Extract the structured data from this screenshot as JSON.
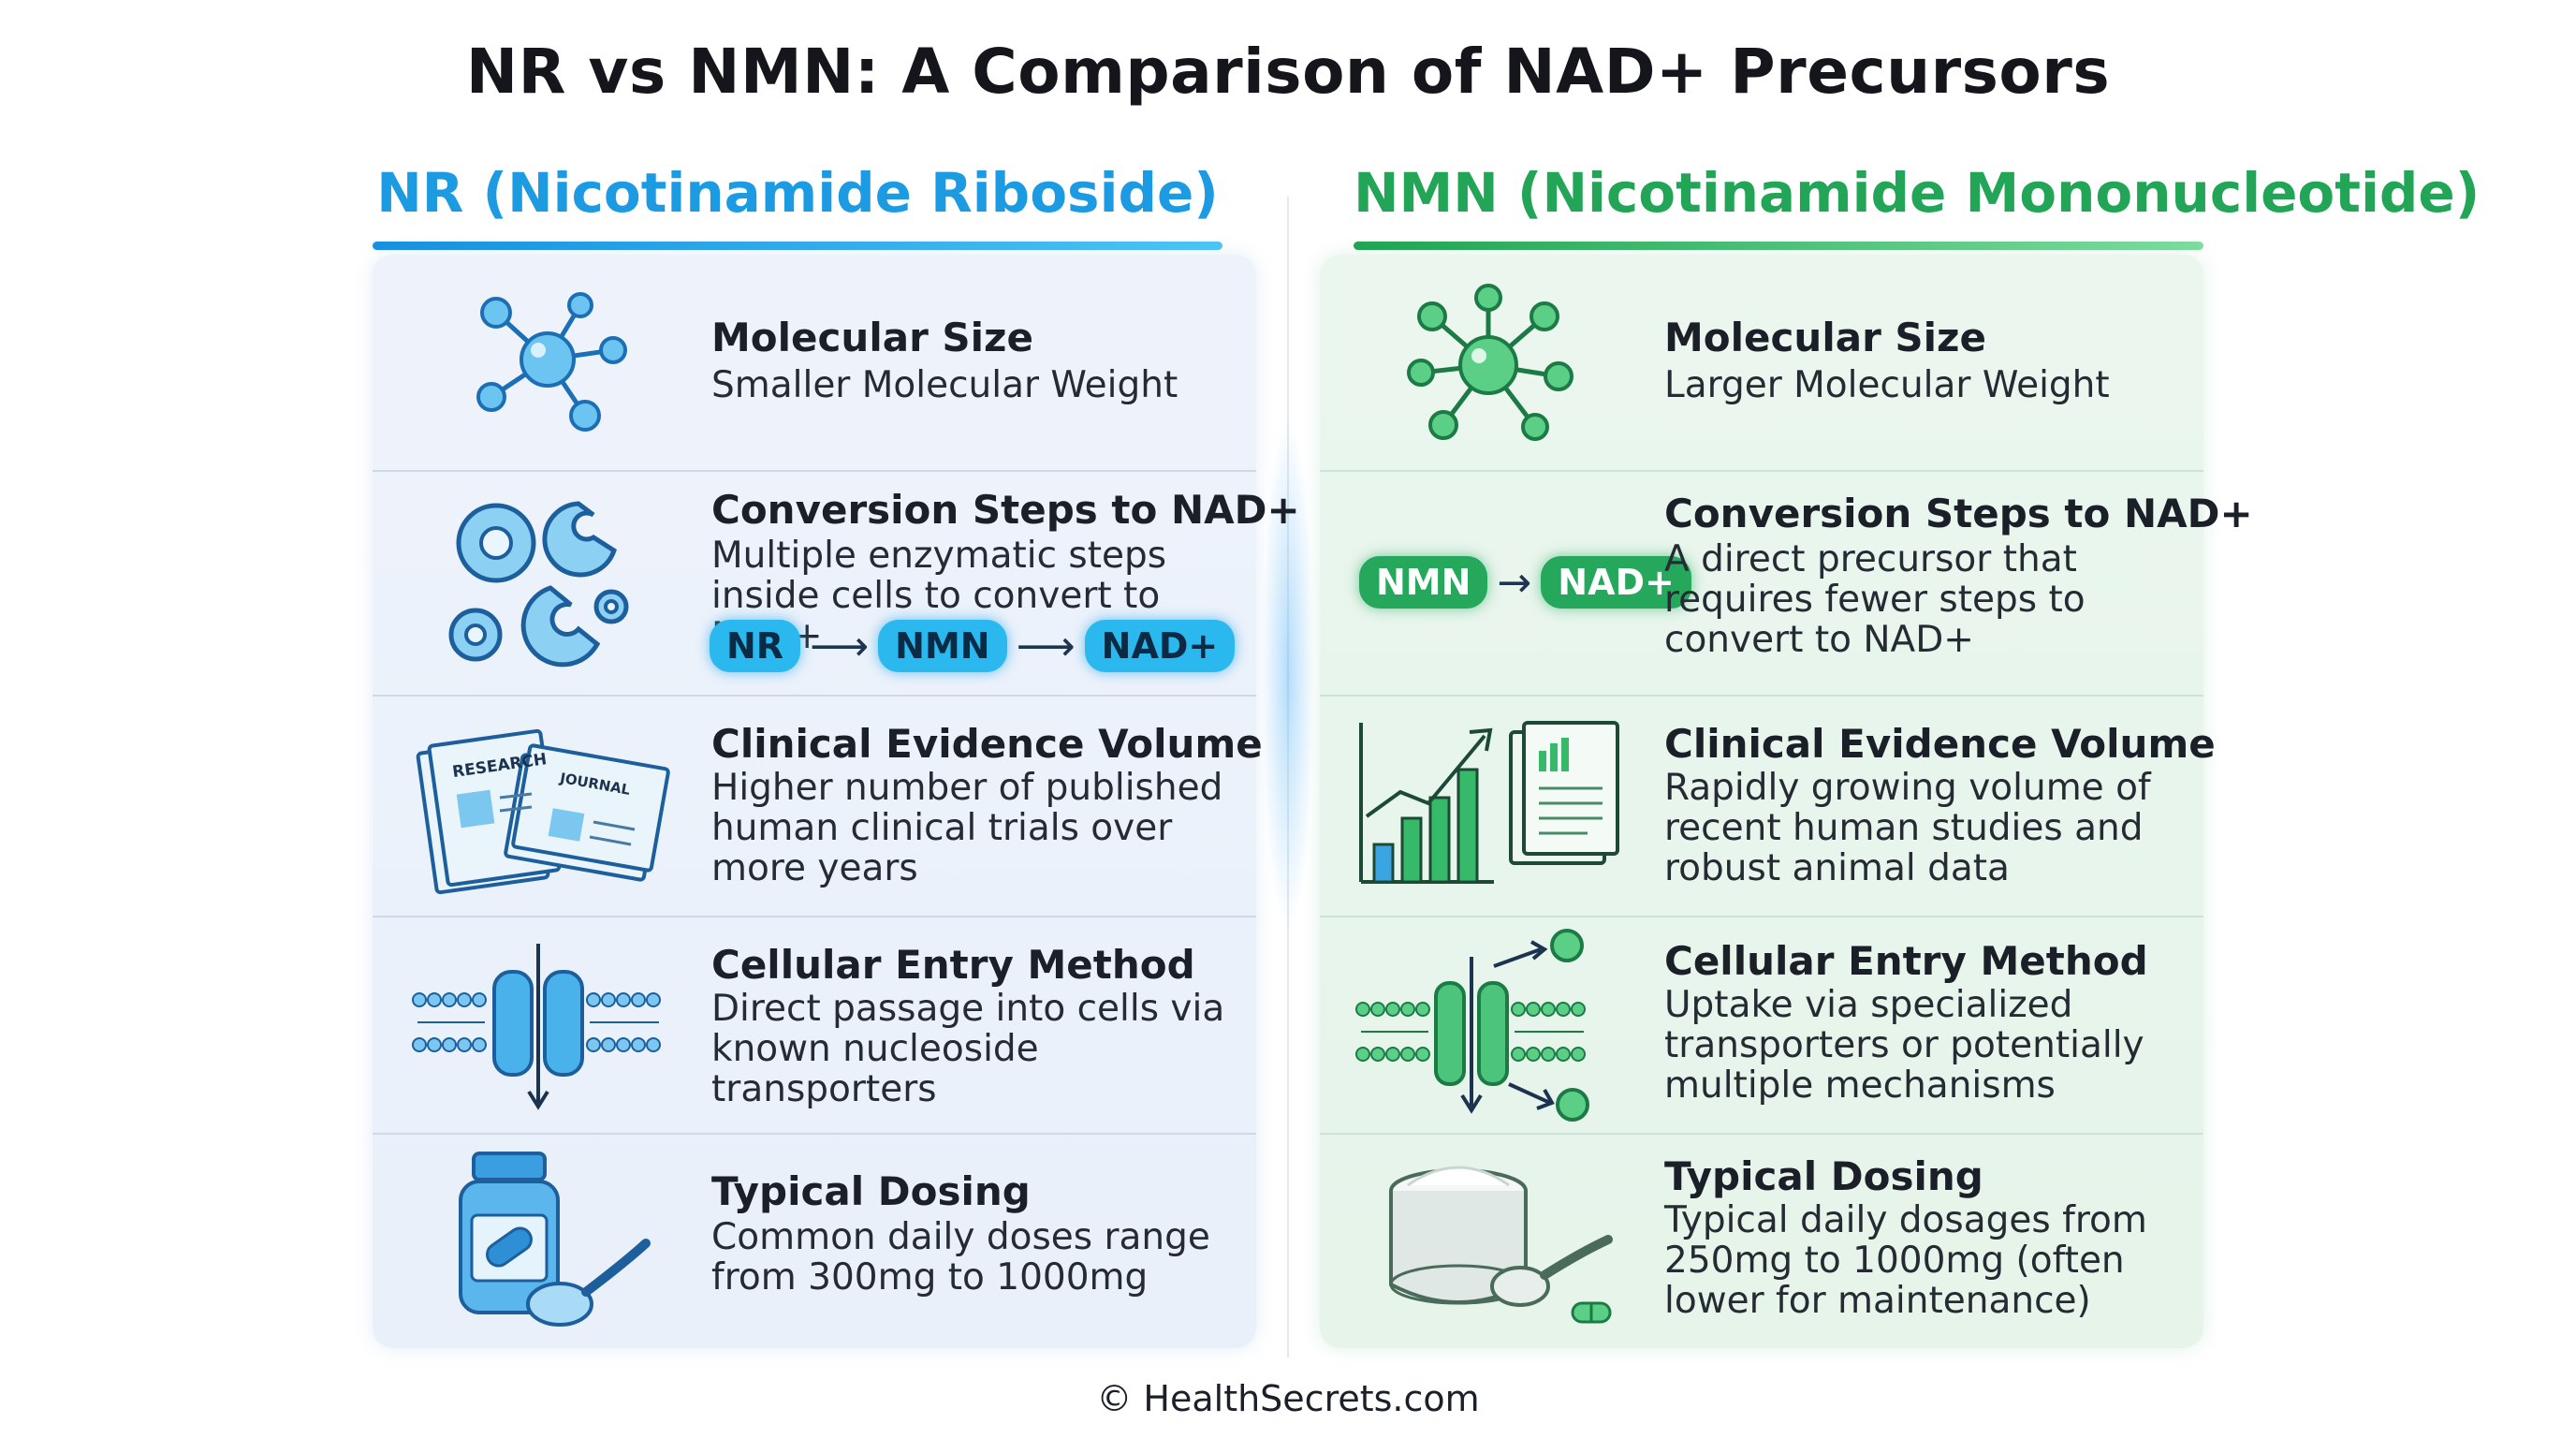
{
  "title": "NR vs NMN: A Comparison of NAD+ Precursors",
  "nr": {
    "heading": "NR (Nicotinamide Riboside)",
    "rows": [
      {
        "title": "Molecular Size",
        "lines": [
          "Smaller Molecular Weight"
        ]
      },
      {
        "title": "Conversion Steps to NAD+",
        "lines": [
          "Multiple enzymatic steps",
          "inside cells to convert to NAD+"
        ]
      },
      {
        "title": "Clinical Evidence Volume",
        "lines": [
          "Higher number of published",
          "human clinical trials over",
          "more years"
        ]
      },
      {
        "title": "Cellular Entry Method",
        "lines": [
          "Direct passage into cells via",
          "known nucleoside",
          "transporters"
        ]
      },
      {
        "title": "Typical Dosing",
        "lines": [
          "Common daily doses range",
          "from 300mg to 1000mg"
        ]
      }
    ],
    "flow": [
      "NR",
      "NMN",
      "NAD+"
    ],
    "icon_labels": {
      "research": "RESEARCH",
      "journal": "JOURNAL"
    }
  },
  "nmn": {
    "heading": "NMN (Nicotinamide Mononucleotide)",
    "rows": [
      {
        "title": "Molecular Size",
        "lines": [
          "Larger Molecular Weight"
        ]
      },
      {
        "title": "Conversion Steps to NAD+",
        "lines": [
          "A direct precursor that",
          "requires fewer steps to",
          "convert to NAD+"
        ]
      },
      {
        "title": "Clinical Evidence Volume",
        "lines": [
          "Rapidly growing volume of",
          "recent human studies and",
          "robust animal data"
        ]
      },
      {
        "title": "Cellular Entry Method",
        "lines": [
          "Uptake via specialized",
          "transporters or potentially",
          "multiple mechanisms"
        ]
      },
      {
        "title": "Typical Dosing",
        "lines": [
          "Typical daily dosages from",
          "250mg to 1000mg (often",
          "lower for maintenance)"
        ]
      }
    ],
    "flow": [
      "NMN",
      "NAD+"
    ]
  },
  "footer": "© HealthSecrets.com",
  "colors": {
    "nr_accent": "#1d9be2",
    "nmn_accent": "#22a556"
  }
}
